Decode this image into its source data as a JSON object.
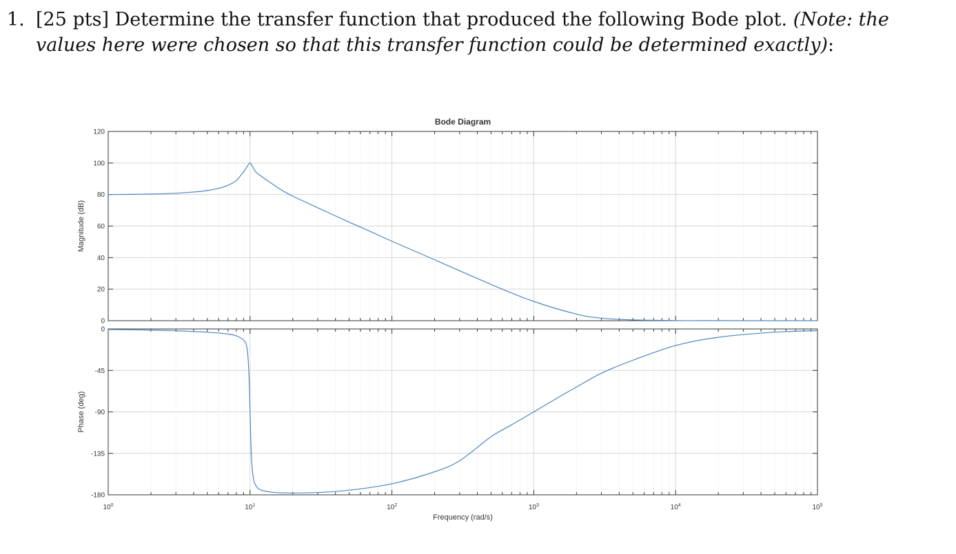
{
  "problem": {
    "number": "1.",
    "points": "[25 pts]",
    "text": "Determine the transfer function that produced the following Bode plot.",
    "note_line1": "(Note: the",
    "note_line2": "values here were chosen so that this transfer function could be determined exactly)",
    "trailing": ":"
  },
  "chart_data": {
    "type": "line",
    "title": "Bode Diagram",
    "xlabel": "Frequency  (rad/s)",
    "x_scale": "log",
    "xlim": [
      1,
      100000
    ],
    "x_ticks": [
      1,
      10,
      100,
      1000,
      10000,
      100000
    ],
    "x_tick_labels": [
      "10",
      "10",
      "10",
      "10",
      "10",
      "10"
    ],
    "x_tick_exponents": [
      "0",
      "1",
      "2",
      "3",
      "4",
      "5"
    ],
    "grid": true,
    "line_color": "#4a86c0",
    "panels": [
      {
        "ylabel": "Magnitude (dB)",
        "ylim": [
          0,
          120
        ],
        "y_ticks": [
          0,
          20,
          40,
          60,
          80,
          100,
          120
        ],
        "y_tick_labels": [
          "0",
          "20",
          "40",
          "60",
          "80",
          "100",
          "120"
        ],
        "series": [
          {
            "x": [
              1,
              2,
              3,
              4,
              5,
              6,
              7,
              8,
              9,
              9.5,
              10,
              10.5,
              11,
              12,
              14,
              17,
              20,
              30,
              50,
              70,
              100,
              200,
              500,
              1000,
              2000,
              3000,
              5000,
              10000,
              20000,
              100000
            ],
            "y": [
              80,
              80.3,
              80.8,
              81.6,
              82.5,
              83.9,
              85.9,
              88.9,
              94.4,
              97.5,
              100,
              97.0,
              94.2,
              91.6,
              87.4,
              82.4,
              79.0,
              71.6,
              62.5,
              56.7,
              50.4,
              38.6,
              23.0,
              12.2,
              4.2,
              1.6,
              0.5,
              0.1,
              0.03,
              0
            ]
          }
        ]
      },
      {
        "ylabel": "Phase (deg)",
        "ylim": [
          -180,
          0
        ],
        "y_ticks": [
          -180,
          -135,
          -90,
          -45,
          0
        ],
        "y_tick_labels": [
          "-180",
          "-135",
          "-90",
          "-45",
          "0"
        ],
        "series": [
          {
            "x": [
              1,
              2,
              3,
              5,
              7,
              8,
              9,
              9.5,
              9.8,
              10,
              10.2,
              10.5,
              11,
              12,
              15,
              20,
              30,
              50,
              100,
              200,
              300,
              500,
              700,
              1000,
              1500,
              2000,
              3000,
              5000,
              10000,
              20000,
              50000,
              100000
            ],
            "y": [
              -0.6,
              -1.2,
              -2.0,
              -3.5,
              -5.5,
              -7.5,
              -12,
              -20,
              -45,
              -90,
              -135,
              -160,
              -170,
              -175,
              -177.5,
              -178,
              -177.5,
              -175,
              -168,
              -155,
              -143,
              -117,
              -104,
              -90,
              -74,
              -63,
              -48,
              -34,
              -18,
              -9,
              -3.5,
              -1.8
            ]
          }
        ]
      }
    ]
  }
}
